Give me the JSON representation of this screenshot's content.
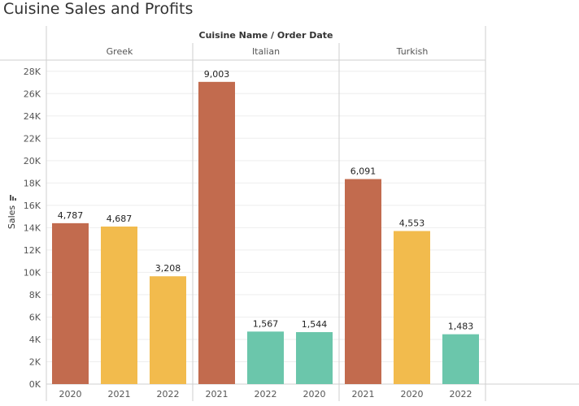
{
  "header": {
    "title": "Cuisine Sales and Profits"
  },
  "colors": {
    "2020": "#c26b4e",
    "2021": "#f2bb4d",
    "2022": "#6bc6ab",
    "grid": "#eeeeee",
    "divider": "#cfcfcf",
    "text": "#555555"
  },
  "chart_data": {
    "type": "bar",
    "title": "Cuisine Sales and Profits",
    "column_header": "Cuisine Name / Order Date",
    "ylabel": "Sales",
    "ylim": [
      0,
      29000
    ],
    "yticks": [
      0,
      2000,
      4000,
      6000,
      8000,
      10000,
      12000,
      14000,
      16000,
      18000,
      20000,
      22000,
      24000,
      26000,
      28000
    ],
    "ytick_labels": [
      "0K",
      "2K",
      "4K",
      "6K",
      "8K",
      "10K",
      "12K",
      "14K",
      "16K",
      "18K",
      "20K",
      "22K",
      "24K",
      "26K",
      "28K"
    ],
    "groups": [
      {
        "name": "Greek",
        "bars": [
          {
            "x": "2020",
            "value": 14400,
            "label": "4,787",
            "color_key": "2020"
          },
          {
            "x": "2021",
            "value": 14100,
            "label": "4,687",
            "color_key": "2021"
          },
          {
            "x": "2022",
            "value": 9650,
            "label": "3,208",
            "color_key": "2021"
          }
        ]
      },
      {
        "name": "Italian",
        "bars": [
          {
            "x": "2021",
            "value": 27050,
            "label": "9,003",
            "color_key": "2020"
          },
          {
            "x": "2022",
            "value": 4700,
            "label": "1,567",
            "color_key": "2022"
          },
          {
            "x": "2020",
            "value": 4650,
            "label": "1,544",
            "color_key": "2022"
          }
        ]
      },
      {
        "name": "Turkish",
        "bars": [
          {
            "x": "2021",
            "value": 18350,
            "label": "6,091",
            "color_key": "2020"
          },
          {
            "x": "2020",
            "value": 13700,
            "label": "4,553",
            "color_key": "2021"
          },
          {
            "x": "2022",
            "value": 4460,
            "label": "1,483",
            "color_key": "2022"
          }
        ]
      }
    ]
  }
}
